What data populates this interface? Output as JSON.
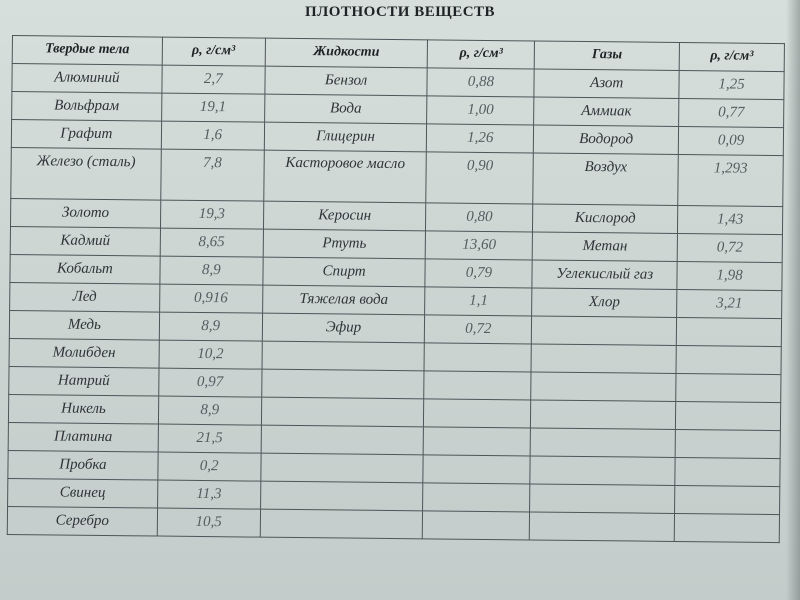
{
  "title": "ПЛОТНОСТИ ВЕЩЕСТВ",
  "headers": [
    "Твердые тела",
    "ρ, г/см³",
    "Жидкости",
    "ρ, г/см³",
    "Газы",
    "ρ, г/см³"
  ],
  "rows": [
    [
      "Алюминий",
      "2,7",
      "Бензол",
      "0,88",
      "Азот",
      "1,25"
    ],
    [
      "Вольфрам",
      "19,1",
      "Вода",
      "1,00",
      "Аммиак",
      "0,77"
    ],
    [
      "Графит",
      "1,6",
      "Глицерин",
      "1,26",
      "Водород",
      "0,09"
    ],
    [
      "Железо (сталь)",
      "7,8",
      "Касторовое масло",
      "0,90",
      "Воздух",
      "1,293"
    ],
    [
      "Золото",
      "19,3",
      "Керосин",
      "0,80",
      "Кислород",
      "1,43"
    ],
    [
      "Кадмий",
      "8,65",
      "Ртуть",
      "13,60",
      "Метан",
      "0,72"
    ],
    [
      "Кобальт",
      "8,9",
      "Спирт",
      "0,79",
      "Углекислый газ",
      "1,98"
    ],
    [
      "Лед",
      "0,916",
      "Тяжелая вода",
      "1,1",
      "Хлор",
      "3,21"
    ],
    [
      "Медь",
      "8,9",
      "Эфир",
      "0,72",
      "",
      ""
    ],
    [
      "Молибден",
      "10,2",
      "",
      "",
      "",
      ""
    ],
    [
      "Натрий",
      "0,97",
      "",
      "",
      "",
      ""
    ],
    [
      "Никель",
      "8,9",
      "",
      "",
      "",
      ""
    ],
    [
      "Платина",
      "21,5",
      "",
      "",
      "",
      ""
    ],
    [
      "Пробка",
      "0,2",
      "",
      "",
      "",
      ""
    ],
    [
      "Свинец",
      "11,3",
      "",
      "",
      "",
      ""
    ],
    [
      "Серебро",
      "10,5",
      "",
      "",
      "",
      ""
    ]
  ]
}
